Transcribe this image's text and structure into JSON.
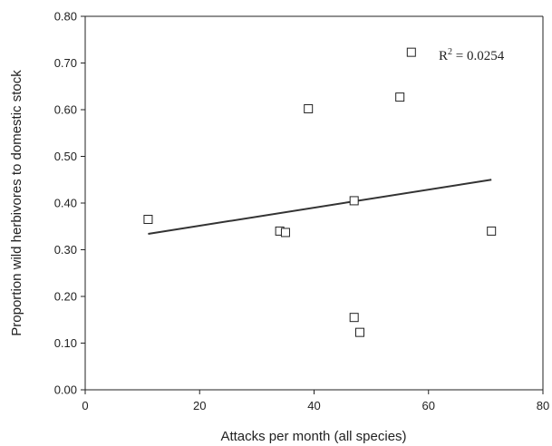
{
  "chart_data": {
    "type": "scatter",
    "title": "",
    "xlabel": "Attacks per month (all species)",
    "ylabel": "Proportion wild herbivores to domestic stock",
    "xlim": [
      0,
      80
    ],
    "ylim": [
      0,
      0.8
    ],
    "x_ticks": [
      "0",
      "20",
      "40",
      "60",
      "80"
    ],
    "y_ticks": [
      "0.00",
      "0.10",
      "0.20",
      "0.30",
      "0.40",
      "0.50",
      "0.60",
      "0.70",
      "0.80"
    ],
    "grid": false,
    "marker": "open-square",
    "points": [
      {
        "x": 11,
        "y": 0.365
      },
      {
        "x": 34,
        "y": 0.34
      },
      {
        "x": 35,
        "y": 0.337
      },
      {
        "x": 39,
        "y": 0.602
      },
      {
        "x": 47,
        "y": 0.405
      },
      {
        "x": 47,
        "y": 0.155
      },
      {
        "x": 48,
        "y": 0.123
      },
      {
        "x": 55,
        "y": 0.627
      },
      {
        "x": 57,
        "y": 0.723
      },
      {
        "x": 71,
        "y": 0.34
      }
    ],
    "trendline": {
      "x": [
        11,
        71
      ],
      "y": [
        0.334,
        0.45
      ]
    },
    "annotation": {
      "base": "R",
      "superscript": "2",
      "rest": " = 0.0254"
    }
  }
}
